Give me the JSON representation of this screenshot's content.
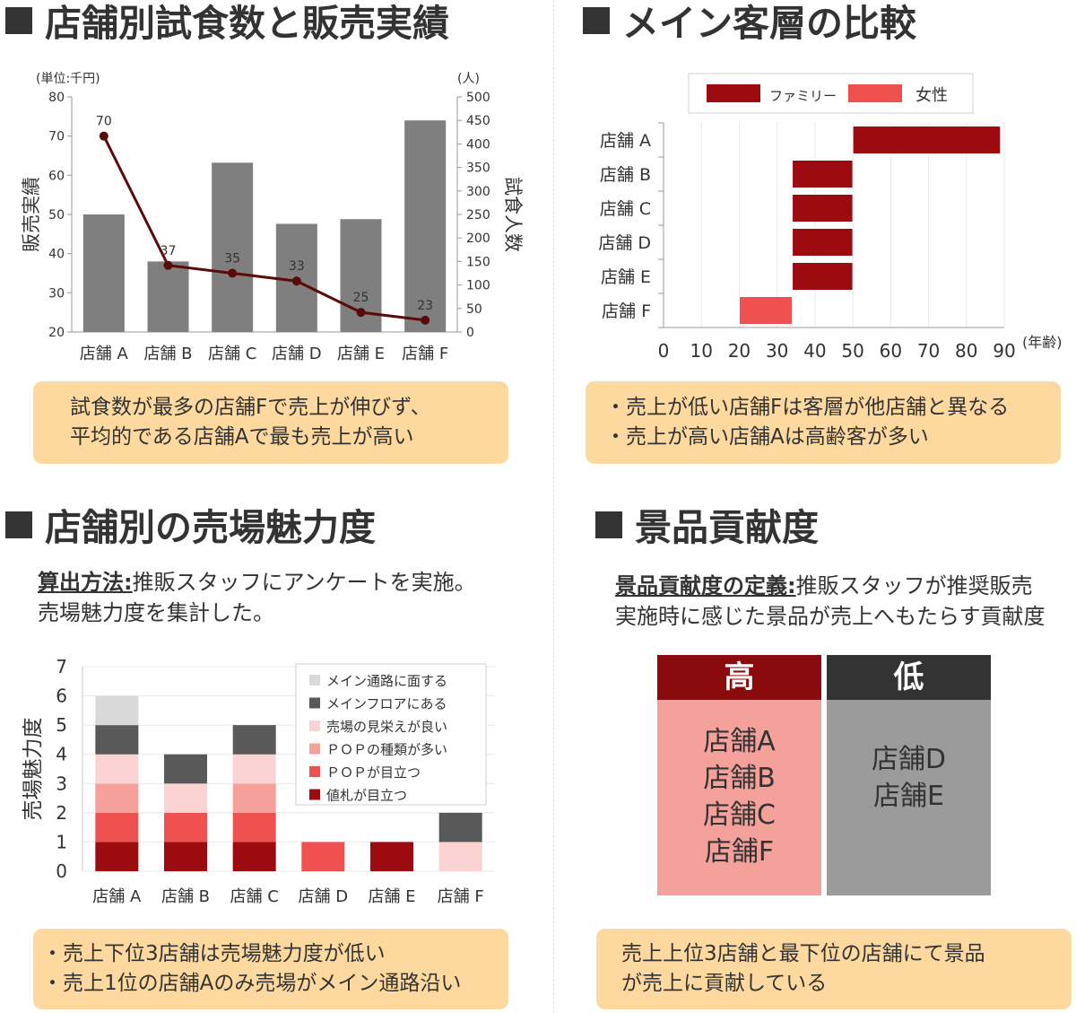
{
  "sections": {
    "q1": {
      "title": "店舗別試食数と販売実績",
      "note_lines": [
        "試食数が最多の店舗Fで売上が伸びず、",
        "平均的である店舗Aで最も売上が高い"
      ]
    },
    "q2": {
      "title": "メイン客層の比較",
      "note_lines": [
        "・売上が低い店舗Fは客層が他店舗と異なる",
        "・売上が高い店舗Aは高齢客が多い"
      ]
    },
    "q3": {
      "title": "店舗別の売場魅力度",
      "desc_label": "算出方法:",
      "desc_text1": "推販スタッフにアンケートを実施。",
      "desc_text2": "売場魅力度を集計した。",
      "note_lines": [
        "・売上下位3店舗は売場魅力度が低い",
        "・売上1位の店舗Aのみ売場がメイン通路沿い"
      ]
    },
    "q4": {
      "title": "景品貢献度",
      "desc_label": "景品貢献度の定義:",
      "desc_text1": "推販スタッフが推奨販売",
      "desc_text2": "実施時に感じた景品が売上へもたらす貢献度",
      "high_label": "高",
      "low_label": "低",
      "high_stores": [
        "店舗A",
        "店舗B",
        "店舗C",
        "店舗F"
      ],
      "low_stores": [
        "店舗D",
        "店舗E"
      ],
      "note_lines": [
        "売上上位3店舗と最下位の店舗にて景品",
        "が売上に貢献している"
      ],
      "colors": {
        "high_head": "#8b0a0e",
        "high_body": "#f4a09b",
        "low_head": "#333333",
        "low_body": "#9b9b9b"
      }
    }
  },
  "chart_data": [
    {
      "type": "bar",
      "categories": [
        "店舗 A",
        "店舗 B",
        "店舗 C",
        "店舗 D",
        "店舗 E",
        "店舗 F"
      ],
      "series": [
        {
          "type": "bar",
          "axis": "right",
          "values": [
            250,
            150,
            360,
            230,
            240,
            450
          ],
          "color": "#7f7f7f"
        },
        {
          "type": "line",
          "axis": "left",
          "values": [
            70,
            37,
            35,
            33,
            25,
            23
          ],
          "color": "#5a0a0a"
        }
      ],
      "left_axis": {
        "label": "販売実績",
        "unit": "(単位:千円)",
        "min": 20,
        "max": 80,
        "step": 10
      },
      "right_axis": {
        "label": "試食人数",
        "unit": "(人)",
        "min": 0,
        "max": 500,
        "step": 50
      }
    },
    {
      "type": "bar",
      "orientation": "horizontal",
      "categories": [
        "店舗 A",
        "店舗 B",
        "店舗 C",
        "店舗 D",
        "店舗 E",
        "店舗 F"
      ],
      "series": [
        {
          "name": "ファミリー",
          "color": "#9b0b10"
        },
        {
          "name": "女性",
          "color": "#ef5050"
        }
      ],
      "bars": [
        {
          "start": 50,
          "end": 89,
          "series": 0
        },
        {
          "start": 34,
          "end": 50,
          "series": 0
        },
        {
          "start": 34,
          "end": 50,
          "series": 0
        },
        {
          "start": 34,
          "end": 50,
          "series": 0
        },
        {
          "start": 34,
          "end": 50,
          "series": 0
        },
        {
          "start": 20,
          "end": 34,
          "series": 1
        }
      ],
      "x_axis": {
        "min": 0,
        "max": 90,
        "step": 10,
        "unit": "(年齢)"
      },
      "legend": "top"
    },
    {
      "type": "bar",
      "stacked": true,
      "categories": [
        "店舗 A",
        "店舗 B",
        "店舗 C",
        "店舗 D",
        "店舗 E",
        "店舗 F"
      ],
      "ylabel": "売場魅力度",
      "ylim": [
        0,
        7
      ],
      "series": [
        {
          "name": "値札が目立つ",
          "color": "#9b0b10",
          "values": [
            1,
            1,
            1,
            0,
            1,
            0
          ]
        },
        {
          "name": "ＰＯＰが目立つ",
          "color": "#ef5050",
          "values": [
            1,
            1,
            1,
            1,
            0,
            0
          ]
        },
        {
          "name": "ＰＯＰの種類が多い",
          "color": "#f5a09a",
          "values": [
            1,
            0,
            1,
            0,
            0,
            0
          ]
        },
        {
          "name": "売場の見栄えが良い",
          "color": "#fcd3d3",
          "values": [
            1,
            1,
            1,
            0,
            0,
            1
          ]
        },
        {
          "name": "メインフロアにある",
          "color": "#595959",
          "values": [
            1,
            1,
            1,
            0,
            0,
            1
          ]
        },
        {
          "name": "メイン通路に面する",
          "color": "#d9d9d9",
          "values": [
            1,
            0,
            0,
            0,
            0,
            0
          ]
        }
      ],
      "legend": "top-right"
    }
  ]
}
